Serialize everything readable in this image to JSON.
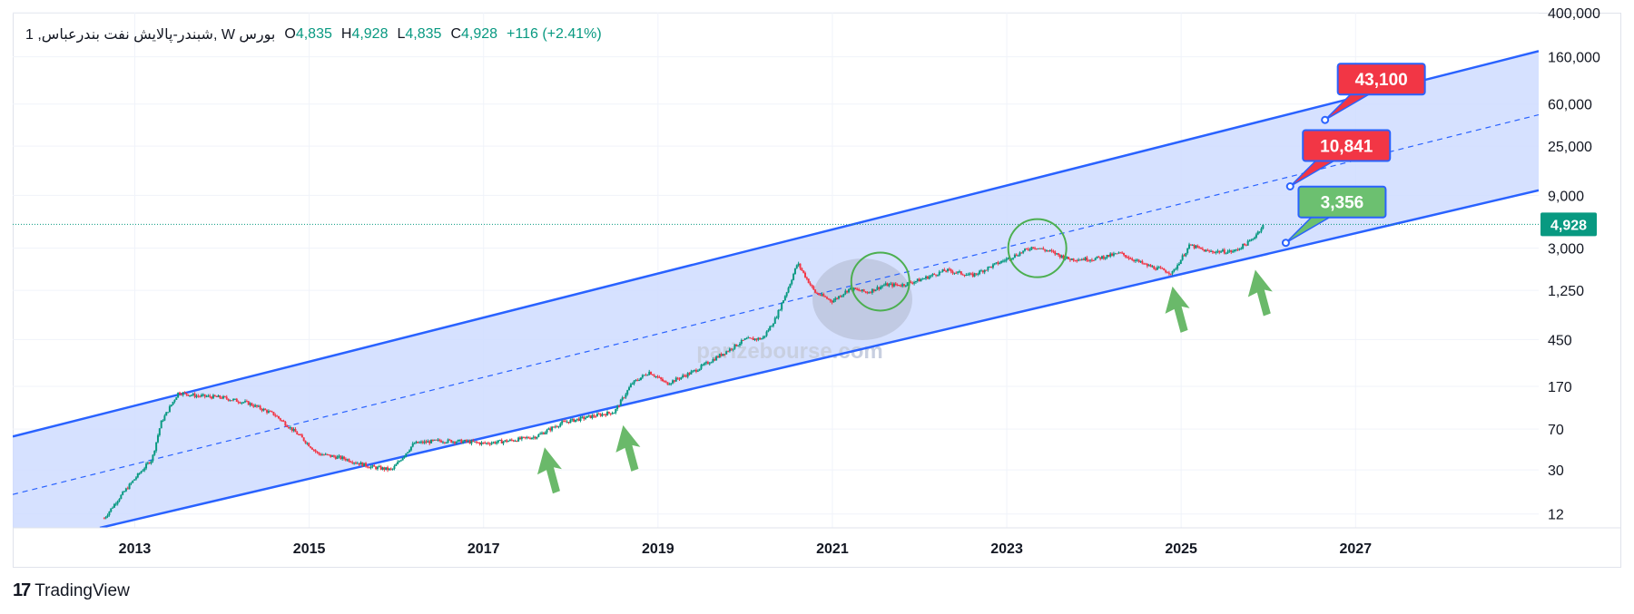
{
  "legend": {
    "symbol": "1 ,شبندر-پالایش نفت بندرعباس, W بورس",
    "o_label": "O",
    "o_value": "4,835",
    "h_label": "H",
    "h_value": "4,928",
    "l_label": "L",
    "l_value": "4,835",
    "c_label": "C",
    "c_value": "4,928",
    "change": "+116 (+2.41%)"
  },
  "footer": {
    "brand": "TradingView"
  },
  "watermark": {
    "text": "parizebourse.com"
  },
  "colors": {
    "channel_line": "#2962ff",
    "channel_fill": "#cfdcff",
    "up": "#089981",
    "down": "#f23645",
    "label_red": "#f23645",
    "label_green": "#6cc070",
    "arrow": "#6ab96a",
    "circle": "#4caf50"
  },
  "chart_data": {
    "type": "candlestick",
    "scale": "log",
    "ylim": [
      9,
      400000
    ],
    "y_ticks": [
      "400,000",
      "160,000",
      "60,000",
      "25,000",
      "9,000",
      "3,000",
      "1,250",
      "450",
      "170",
      "70",
      "30",
      "12"
    ],
    "y_tick_values": [
      400000,
      160000,
      60000,
      25000,
      9000,
      3000,
      1250,
      450,
      170,
      70,
      30,
      12
    ],
    "x_ticks": [
      "2013",
      "2015",
      "2017",
      "2019",
      "2021",
      "2023",
      "2025",
      "2027"
    ],
    "x_tick_values": [
      2013,
      2015,
      2017,
      2019,
      2021,
      2023,
      2025,
      2027
    ],
    "xlim": [
      2011.6,
      2029.1
    ],
    "price_series": {
      "name": "",
      "x": [
        2012.65,
        2012.8,
        2013.0,
        2013.2,
        2013.3,
        2013.5,
        2013.7,
        2014.0,
        2014.3,
        2014.6,
        2014.9,
        2015.1,
        2015.4,
        2015.7,
        2015.95,
        2016.2,
        2016.5,
        2016.8,
        2017.0,
        2017.3,
        2017.6,
        2017.9,
        2018.2,
        2018.5,
        2018.7,
        2018.9,
        2019.1,
        2019.4,
        2019.7,
        2020.0,
        2020.2,
        2020.35,
        2020.5,
        2020.6,
        2020.8,
        2021.0,
        2021.2,
        2021.4,
        2021.6,
        2021.8,
        2022.0,
        2022.3,
        2022.6,
        2022.9,
        2023.1,
        2023.3,
        2023.5,
        2023.7,
        2024.0,
        2024.3,
        2024.6,
        2024.9,
        2025.1,
        2025.3,
        2025.6,
        2025.8,
        2025.95
      ],
      "y": [
        11,
        16,
        25,
        38,
        80,
        150,
        140,
        135,
        120,
        95,
        60,
        42,
        38,
        32,
        30,
        52,
        55,
        54,
        52,
        55,
        60,
        80,
        90,
        100,
        180,
        230,
        180,
        230,
        320,
        450,
        460,
        700,
        1350,
        2200,
        1200,
        1000,
        1300,
        1200,
        1400,
        1400,
        1550,
        1900,
        1700,
        2200,
        2600,
        3100,
        2800,
        2400,
        2400,
        2700,
        2100,
        1800,
        3200,
        2800,
        2800,
        3500,
        4928
      ]
    },
    "last_price": "4,928",
    "channel": {
      "upper": {
        "x": [
          2011.6,
          2029.1
        ],
        "y": [
          60,
          180000
        ]
      },
      "middle": {
        "x": [
          2011.6,
          2029.1
        ],
        "y": [
          18,
          48000
        ]
      },
      "lower": {
        "x": [
          2012.6,
          2029.1
        ],
        "y": [
          9,
          10000
        ]
      }
    },
    "targets": [
      {
        "label": "43,100",
        "x": 2026.65,
        "y": 43100,
        "color": "red"
      },
      {
        "label": "10,841",
        "x": 2026.25,
        "y": 10841,
        "color": "red"
      },
      {
        "label": "3,356",
        "x": 2026.2,
        "y": 3356,
        "color": "green"
      }
    ],
    "circles": [
      {
        "x": 2021.55,
        "y": 1500
      },
      {
        "x": 2023.35,
        "y": 3000
      }
    ],
    "arrows": [
      {
        "x": 2017.7,
        "y": 60
      },
      {
        "x": 2018.6,
        "y": 95
      },
      {
        "x": 2024.9,
        "y": 1700
      },
      {
        "x": 2025.85,
        "y": 2400
      }
    ]
  }
}
